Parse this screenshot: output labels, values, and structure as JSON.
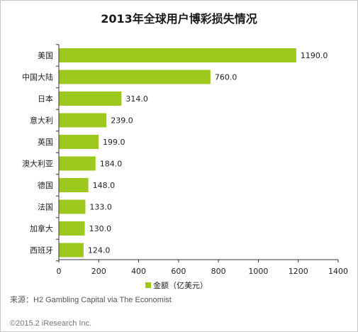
{
  "title": "2013年全球用户博彩损失情况",
  "source": "来源：H2 Gambling Capital via The Economist",
  "copyright": "©2015.2 iResearch Inc.",
  "colors": {
    "bar": "#9dc81e",
    "axis": "#333333",
    "legend": "#9dc81e"
  },
  "chart_data": {
    "type": "bar",
    "orientation": "horizontal",
    "title": "2013年全球用户博彩损失情况",
    "categories": [
      "美国",
      "中国大陆",
      "日本",
      "意大利",
      "英国",
      "澳大利亚",
      "德国",
      "法国",
      "加拿大",
      "西班牙"
    ],
    "series": [
      {
        "name": "金额（亿美元）",
        "values": [
          1190.0,
          760.0,
          314.0,
          239.0,
          199.0,
          184.0,
          148.0,
          133.0,
          130.0,
          124.0
        ]
      }
    ],
    "value_labels": [
      "1190.0",
      "760.0",
      "314.0",
      "239.0",
      "199.0",
      "184.0",
      "148.0",
      "133.0",
      "130.0",
      "124.0"
    ],
    "xlim": [
      0,
      1400
    ],
    "xticks": [
      0,
      200,
      400,
      600,
      800,
      1000,
      1200,
      1400
    ],
    "grid": false,
    "legend_position": "bottom"
  }
}
